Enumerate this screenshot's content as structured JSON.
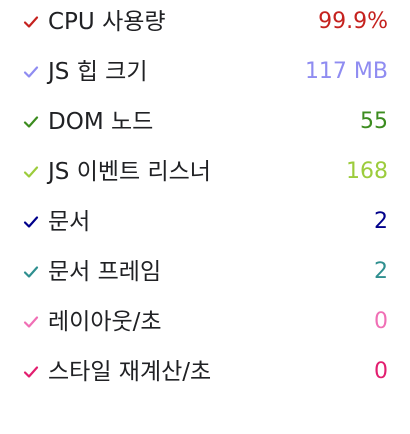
{
  "metrics": [
    {
      "label": "CPU 사용량",
      "value": "99.9%",
      "color": "#c5221f",
      "checked": true
    },
    {
      "label": "JS 힙 크기",
      "value": "117 MB",
      "color": "#8f8cf1",
      "checked": true
    },
    {
      "label": "DOM 노드",
      "value": "55",
      "color": "#3c8c1f",
      "checked": true
    },
    {
      "label": "JS 이벤트 리스너",
      "value": "168",
      "color": "#9ccc3c",
      "checked": true
    },
    {
      "label": "문서",
      "value": "2",
      "color": "#00008b",
      "checked": true
    },
    {
      "label": "문서 프레임",
      "value": "2",
      "color": "#2f8f8f",
      "checked": true
    },
    {
      "label": "레이아웃/초",
      "value": "0",
      "color": "#f06fb5",
      "checked": true
    },
    {
      "label": "스타일 재계산/초",
      "value": "0",
      "color": "#e21e6f",
      "checked": true
    }
  ],
  "icons": {
    "check": "check-icon"
  }
}
